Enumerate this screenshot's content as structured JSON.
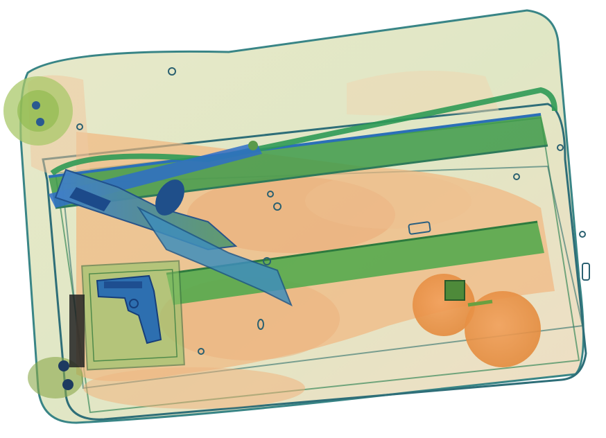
{
  "image": {
    "kind": "x-ray baggage scan",
    "palette": {
      "background": "#ffffff",
      "organic": "#f0a060",
      "organic_dark": "#e07a35",
      "inorganic": "#5fae3f",
      "inorganic_light": "#a8d07a",
      "metal": "#2e6fc8",
      "metal_dark": "#1a4a90",
      "shell": "#c9dcae"
    },
    "objects": [
      {
        "name": "suitcase-shell",
        "material": "inorganic"
      },
      {
        "name": "telescoping-handle",
        "material": "inorganic"
      },
      {
        "name": "knife",
        "material": "metal"
      },
      {
        "name": "handgun",
        "material": "metal"
      },
      {
        "name": "orange-fruit",
        "material": "organic"
      },
      {
        "name": "clothing",
        "material": "organic"
      },
      {
        "name": "wheel",
        "material": "inorganic"
      }
    ]
  }
}
